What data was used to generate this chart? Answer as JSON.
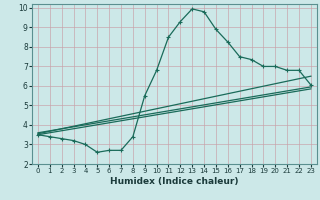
{
  "xlabel": "Humidex (Indice chaleur)",
  "bg_color": "#cce8e8",
  "grid_color": "#c8a0a8",
  "line_color": "#1a6b5a",
  "xlim": [
    -0.5,
    23.5
  ],
  "ylim": [
    2,
    10.2
  ],
  "xticks": [
    0,
    1,
    2,
    3,
    4,
    5,
    6,
    7,
    8,
    9,
    10,
    11,
    12,
    13,
    14,
    15,
    16,
    17,
    18,
    19,
    20,
    21,
    22,
    23
  ],
  "yticks": [
    2,
    3,
    4,
    5,
    6,
    7,
    8,
    9,
    10
  ],
  "main_x": [
    0,
    1,
    2,
    3,
    4,
    5,
    6,
    7,
    8,
    9,
    10,
    11,
    12,
    13,
    14,
    15,
    16,
    17,
    18,
    19,
    20,
    21,
    22,
    23
  ],
  "main_y": [
    3.5,
    3.4,
    3.3,
    3.2,
    3.0,
    2.6,
    2.7,
    2.7,
    3.4,
    5.5,
    6.8,
    8.5,
    9.3,
    9.95,
    9.8,
    8.9,
    8.25,
    7.5,
    7.35,
    7.0,
    7.0,
    6.8,
    6.8,
    6.05
  ],
  "trend1_x": [
    0,
    23
  ],
  "trend1_y": [
    3.5,
    5.85
  ],
  "trend2_x": [
    0,
    23
  ],
  "trend2_y": [
    3.55,
    6.5
  ],
  "trend3_x": [
    0,
    23
  ],
  "trend3_y": [
    3.6,
    5.95
  ]
}
